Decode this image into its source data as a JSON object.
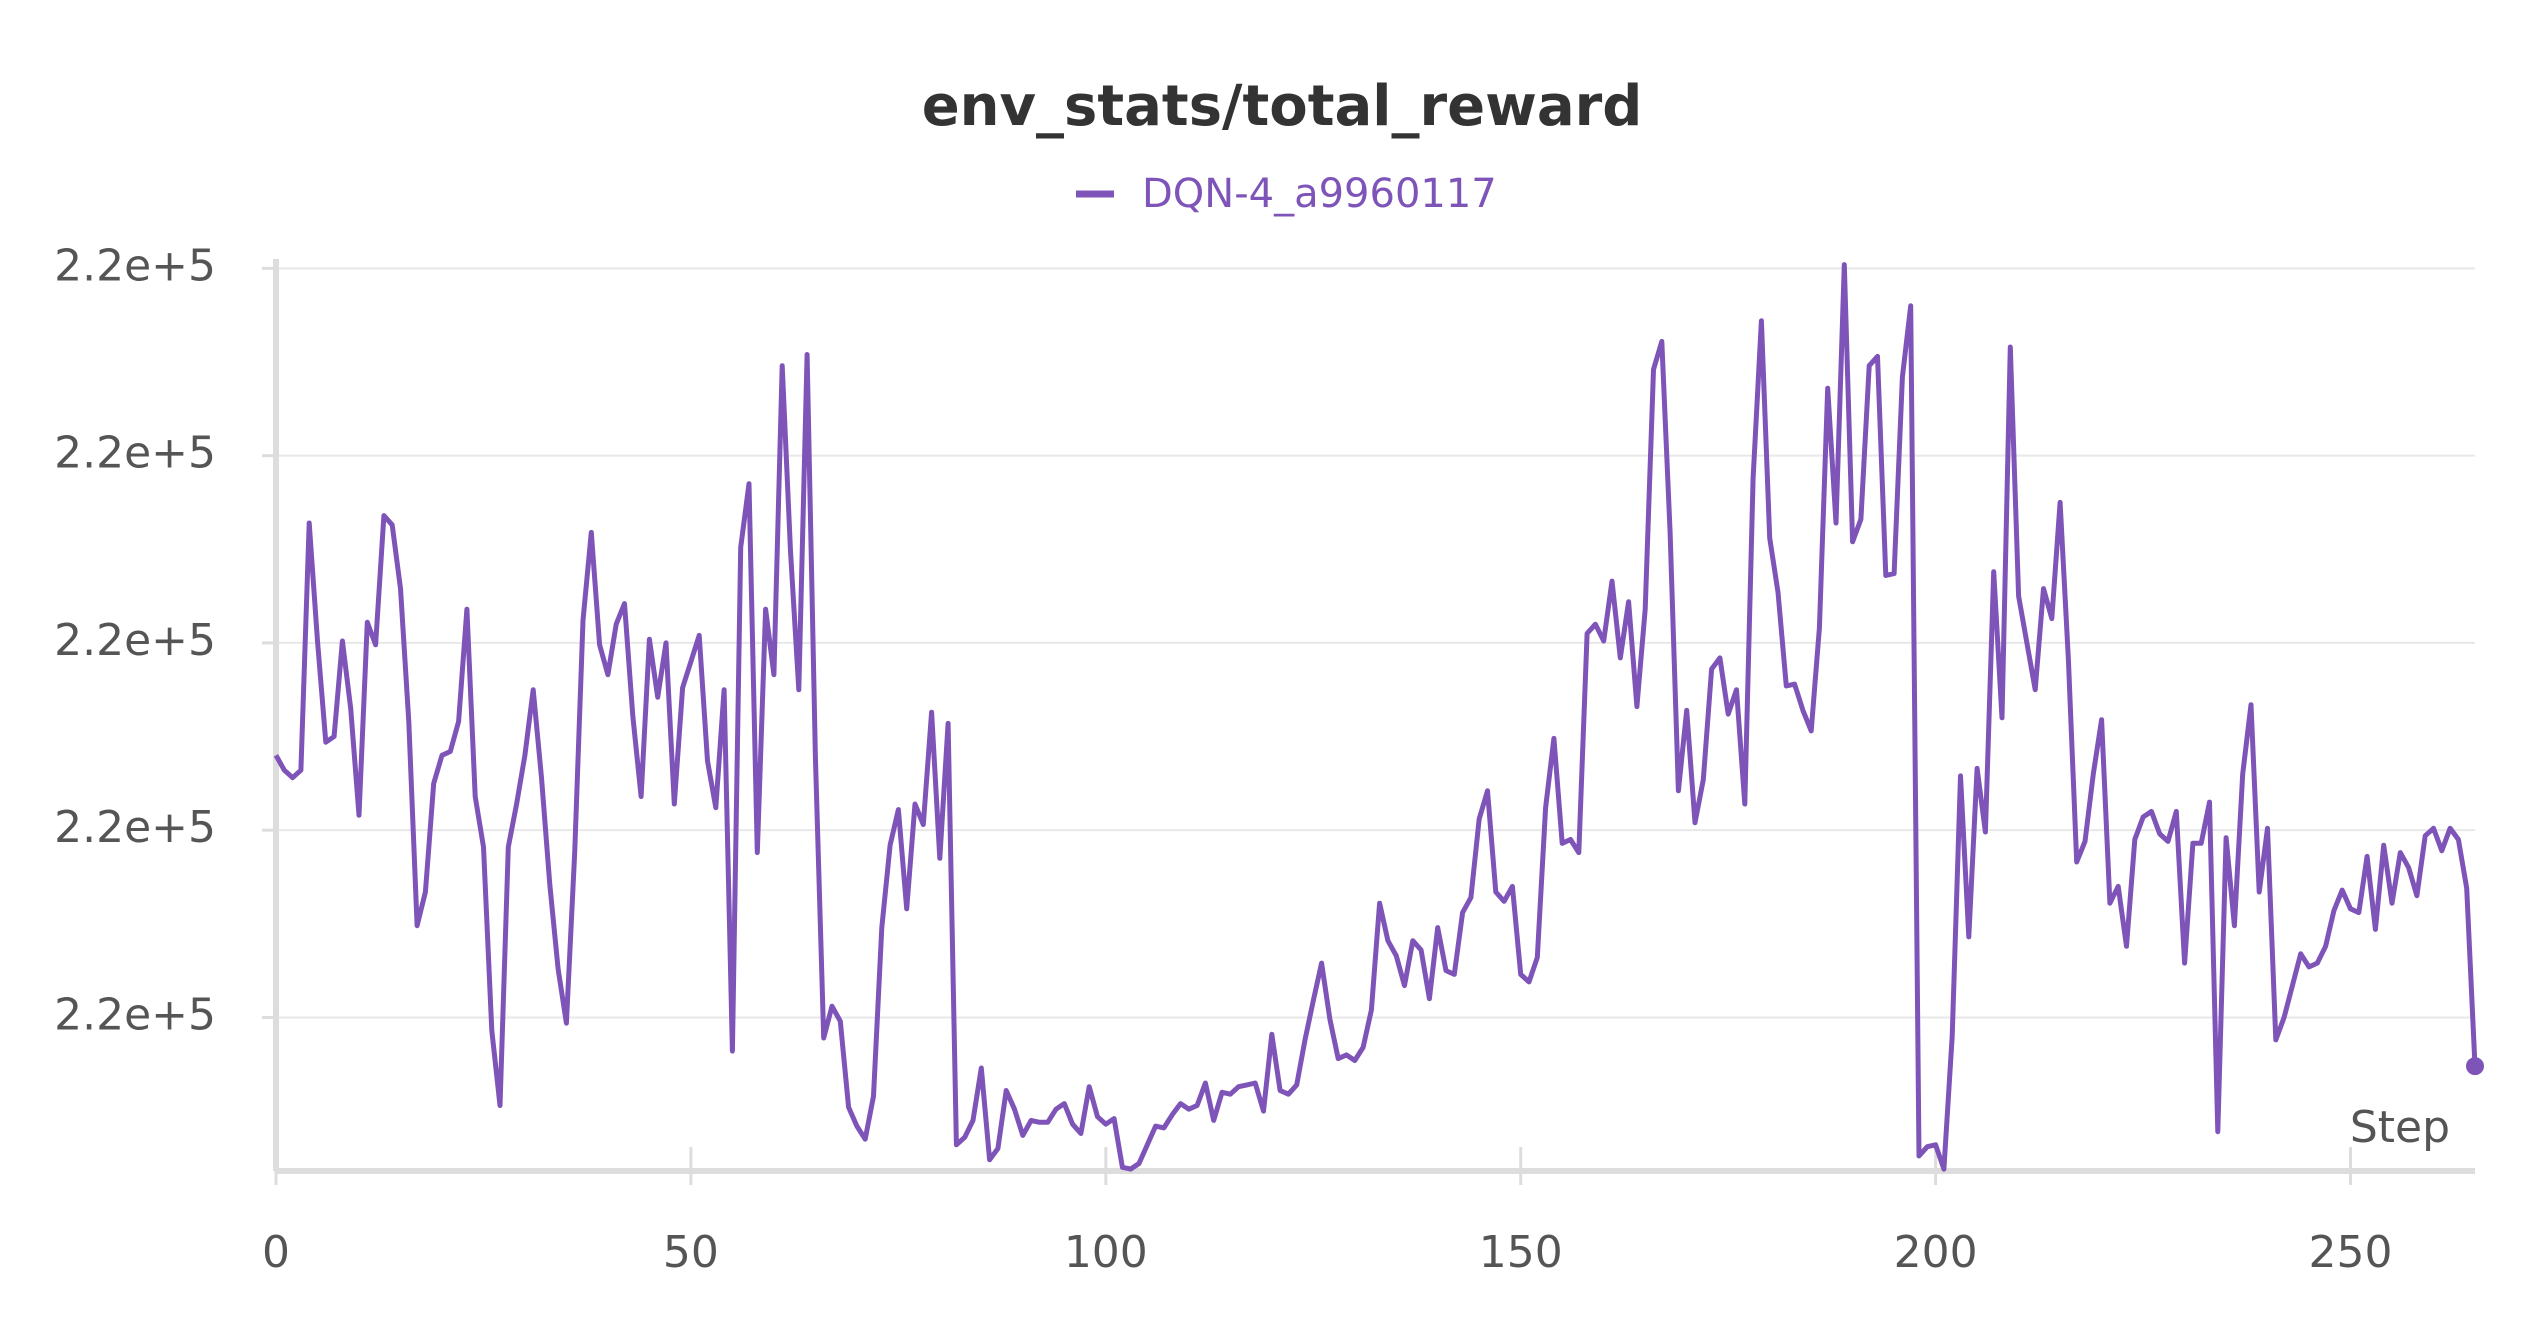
{
  "chart_data": {
    "type": "line",
    "title": "env_stats/total_reward",
    "x_label": "Step",
    "x": [
      0,
      1,
      2,
      3,
      4,
      5,
      6,
      7,
      8,
      9,
      10,
      11,
      12,
      13,
      14,
      15,
      16,
      17,
      18,
      19,
      20,
      21,
      22,
      23,
      24,
      25,
      26,
      27,
      28,
      29,
      30,
      31,
      32,
      33,
      34,
      35,
      36,
      37,
      38,
      39,
      40,
      41,
      42,
      43,
      44,
      45,
      46,
      47,
      48,
      49,
      50,
      51,
      52,
      53,
      54,
      55,
      56,
      57,
      58,
      59,
      60,
      61,
      62,
      63,
      64,
      65,
      66,
      67,
      68,
      69,
      70,
      71,
      72,
      73,
      74,
      75,
      76,
      77,
      78,
      79,
      80,
      81,
      82,
      83,
      84,
      85,
      86,
      87,
      88,
      89,
      90,
      91,
      92,
      93,
      94,
      95,
      96,
      97,
      98,
      99,
      100,
      101,
      102,
      103,
      104,
      105,
      106,
      107,
      108,
      109,
      110,
      111,
      112,
      113,
      114,
      115,
      116,
      117,
      118,
      119,
      120,
      121,
      122,
      123,
      124,
      125,
      126,
      127,
      128,
      129,
      130,
      131,
      132,
      133,
      134,
      135,
      136,
      137,
      138,
      139,
      140,
      141,
      142,
      143,
      144,
      145,
      146,
      147,
      148,
      149,
      150,
      151,
      152,
      153,
      154,
      155,
      156,
      157,
      158,
      159,
      160,
      161,
      162,
      163,
      164,
      165,
      166,
      167,
      168,
      169,
      170,
      171,
      172,
      173,
      174,
      175,
      176,
      177,
      178,
      179,
      180,
      181,
      182,
      183,
      184,
      185,
      186,
      187,
      188,
      189,
      190,
      191,
      192,
      193,
      194,
      195,
      196,
      197,
      198,
      199,
      200,
      201,
      202,
      203,
      204,
      205,
      206,
      207,
      208,
      209,
      210,
      211,
      212,
      213,
      214,
      215,
      216,
      217,
      218,
      219,
      220,
      221,
      222,
      223,
      224,
      225,
      226,
      227,
      228,
      229,
      230,
      231,
      232,
      233,
      234,
      235,
      236,
      237,
      238,
      239,
      240,
      241,
      242,
      243,
      244,
      245,
      246,
      247,
      248,
      249,
      250,
      251,
      252,
      253,
      254,
      255,
      256,
      257,
      258,
      259,
      260,
      261,
      262,
      263,
      264,
      265
    ],
    "series": [
      {
        "name": "DQN-4_a9960117",
        "color": "#7e54b8",
        "values": [
          219940,
          219932,
          219928,
          219932,
          220064,
          220001,
          219947,
          219950,
          220001,
          219965,
          219908,
          220011,
          219999,
          220068,
          220063,
          220029,
          219958,
          219849,
          219867,
          219925,
          219940,
          219942,
          219958,
          220018,
          219918,
          219891,
          219793,
          219753,
          219891,
          219914,
          219940,
          219975,
          219928,
          219871,
          219826,
          219797,
          219888,
          220012,
          220059,
          219999,
          219983,
          220010,
          220021,
          219961,
          219918,
          220002,
          219971,
          220000,
          219914,
          219976,
          219990,
          220004,
          219937,
          219912,
          219975,
          219782,
          220051,
          220085,
          219888,
          220018,
          219983,
          220148,
          220049,
          219975,
          220154,
          219939,
          219789,
          219806,
          219798,
          219752,
          219742,
          219735,
          219758,
          219848,
          219892,
          219911,
          219858,
          219914,
          219903,
          219963,
          219885,
          219957,
          219732,
          219736,
          219745,
          219773,
          219724,
          219730,
          219761,
          219751,
          219737,
          219745,
          219744,
          219744,
          219751,
          219754,
          219743,
          219738,
          219763,
          219747,
          219743,
          219746,
          219720,
          219719,
          219722,
          219732,
          219742,
          219741,
          219748,
          219754,
          219751,
          219753,
          219765,
          219745,
          219760,
          219759,
          219763,
          219764,
          219765,
          219750,
          219791,
          219761,
          219759,
          219764,
          219788,
          219809,
          219829,
          219799,
          219778,
          219780,
          219777,
          219784,
          219804,
          219861,
          219841,
          219833,
          219817,
          219841,
          219836,
          219810,
          219848,
          219825,
          219823,
          219856,
          219864,
          219906,
          219921,
          219867,
          219862,
          219870,
          219823,
          219819,
          219832,
          219912,
          219949,
          219893,
          219895,
          219888,
          220005,
          220010,
          220001,
          220033,
          219992,
          220022,
          219966,
          220018,
          220146,
          220161,
          220059,
          219921,
          219964,
          219904,
          219927,
          219986,
          219992,
          219962,
          219975,
          219914,
          220088,
          220172,
          220056,
          220027,
          219977,
          219978,
          219964,
          219953,
          220008,
          220136,
          220064,
          220202,
          220054,
          220066,
          220148,
          220153,
          220036,
          220037,
          220142,
          220180,
          219726,
          219731,
          219732,
          219719,
          219790,
          219929,
          219843,
          219933,
          219899,
          220038,
          219960,
          220158,
          220025,
          220000,
          219975,
          220029,
          220013,
          220075,
          219991,
          219883,
          219894,
          219930,
          219959,
          219861,
          219870,
          219838,
          219895,
          219907,
          219910,
          219898,
          219894,
          219910,
          219829,
          219893,
          219893,
          219915,
          219739,
          219896,
          219849,
          219930,
          219967,
          219867,
          219901,
          219788,
          219800,
          219817,
          219834,
          219827,
          219829,
          219838,
          219857,
          219868,
          219858,
          219856,
          219886,
          219847,
          219892,
          219861,
          219888,
          219880,
          219865,
          219897,
          219901,
          219889,
          219901,
          219895,
          219869,
          219774
        ]
      }
    ],
    "xlim": [
      0,
      265
    ],
    "xticks": [
      0,
      50,
      100,
      150,
      200,
      250
    ],
    "ylim": [
      219718,
      220205
    ],
    "yticks": [
      {
        "value": 219800,
        "label": "2.2e+5"
      },
      {
        "value": 219900,
        "label": "2.2e+5"
      },
      {
        "value": 220000,
        "label": "2.2e+5"
      },
      {
        "value": 220100,
        "label": "2.2e+5"
      },
      {
        "value": 220200,
        "label": "2.2e+5"
      }
    ],
    "grid": true
  }
}
